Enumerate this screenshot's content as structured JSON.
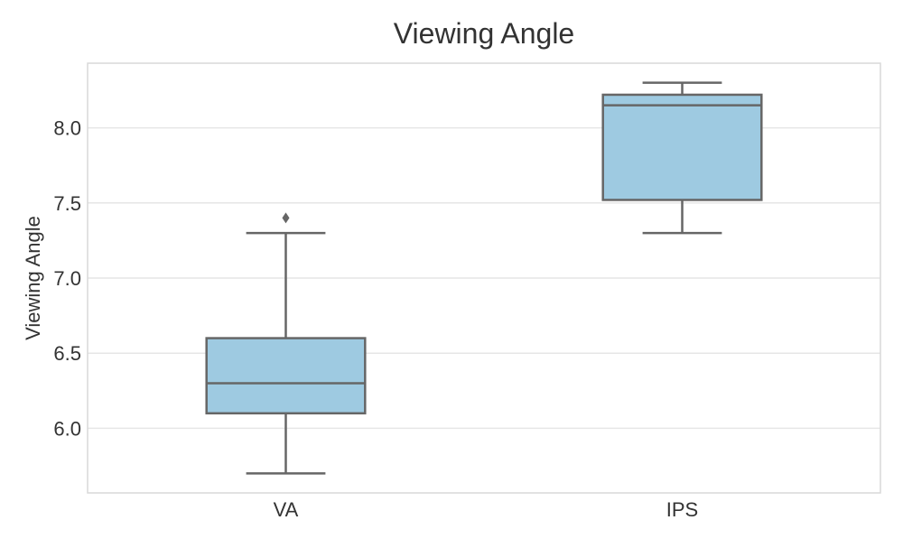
{
  "chart_data": {
    "type": "box",
    "title": "Viewing Angle",
    "xlabel": "",
    "ylabel": "Viewing Angle",
    "categories": [
      "VA",
      "IPS"
    ],
    "boxes": [
      {
        "category": "VA",
        "whisker_low": 5.7,
        "q1": 6.1,
        "median": 6.3,
        "q3": 6.6,
        "whisker_high": 7.3,
        "outliers": [
          7.4
        ]
      },
      {
        "category": "IPS",
        "whisker_low": 7.3,
        "q1": 7.52,
        "median": 8.15,
        "q3": 8.22,
        "whisker_high": 8.3,
        "outliers": []
      }
    ],
    "yticks": [
      6.0,
      6.5,
      7.0,
      7.5,
      8.0
    ],
    "ytick_labels": [
      "6.0",
      "6.5",
      "7.0",
      "7.5",
      "8.0"
    ],
    "ylim": [
      5.57,
      8.43
    ],
    "grid": true,
    "colors": {
      "box_fill": "#9ecae1",
      "box_edge": "#666666",
      "grid": "#e6e6e6",
      "frame": "#d9d9d9"
    }
  }
}
